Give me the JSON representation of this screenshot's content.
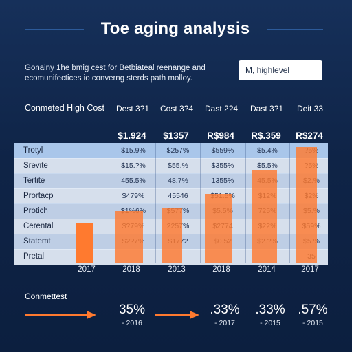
{
  "header": {
    "title": "Toe aging analysis",
    "subtitle": "Gonainy 1he bmig cest for Betbiateal reenange and ecomunifectices io converng sterds path molloy.",
    "search_value": "M, highlevel"
  },
  "table": {
    "title": "Conmeted High Cost",
    "columns": [
      "Dest 3?1",
      "Cost 3?4",
      "Dast 2?4",
      "Dast 3?1",
      "Deit 33"
    ],
    "totals": [
      "$1.924",
      "$1357",
      "R$984",
      "R$.359",
      "R$274"
    ],
    "rows": [
      {
        "label": "Trotyl",
        "values": [
          "$15.9%",
          "$257%",
          "$559%",
          "$5.4%",
          "?5%"
        ]
      },
      {
        "label": "Srevite",
        "values": [
          "$15.?%",
          "$55.%",
          "$355%",
          "$5.5%",
          "?5%"
        ]
      },
      {
        "label": "Tertite",
        "values": [
          "455.5%",
          "48.7%",
          "1355%",
          "45.5%",
          "$2.%"
        ]
      },
      {
        "label": "Prortacp",
        "values": [
          "$479%",
          "45546",
          "$51.5%",
          "$12%",
          "$2%"
        ]
      },
      {
        "label": "Protich",
        "values": [
          "$1%6%",
          "$577%",
          "$5.5%",
          "725%",
          "$5.%"
        ]
      },
      {
        "label": "Cerental",
        "values": [
          "$?79%",
          "2257%",
          "$2774",
          "$22%",
          "$59%"
        ]
      },
      {
        "label": "Statemt",
        "values": [
          "$2?7%",
          "$1772",
          "$0.52",
          "$2.?%",
          "$5.%"
        ]
      },
      {
        "label": "Pretal",
        "values": [
          "",
          "",
          "",
          "",
          "35"
        ]
      }
    ]
  },
  "chart_data": {
    "type": "bar",
    "categories": [
      "2017",
      "2018",
      "2013",
      "2018",
      "2014",
      "2017"
    ],
    "values": [
      58,
      75,
      80,
      100,
      135,
      168
    ],
    "ylim": [
      0,
      180
    ]
  },
  "bottom": {
    "title": "Conmettest",
    "stats": [
      {
        "value": "35%",
        "sub": "- 2016"
      },
      {
        "value": ".33%",
        "sub": "- 2017"
      },
      {
        "value": ".33%",
        "sub": "- 2015"
      },
      {
        "value": ".57%",
        "sub": "- 2015"
      }
    ]
  },
  "colors": {
    "background": "#0f2447",
    "accent": "#ff7a2f",
    "table_band": "#c8d8ee",
    "table_header": "#a9c6ea"
  }
}
